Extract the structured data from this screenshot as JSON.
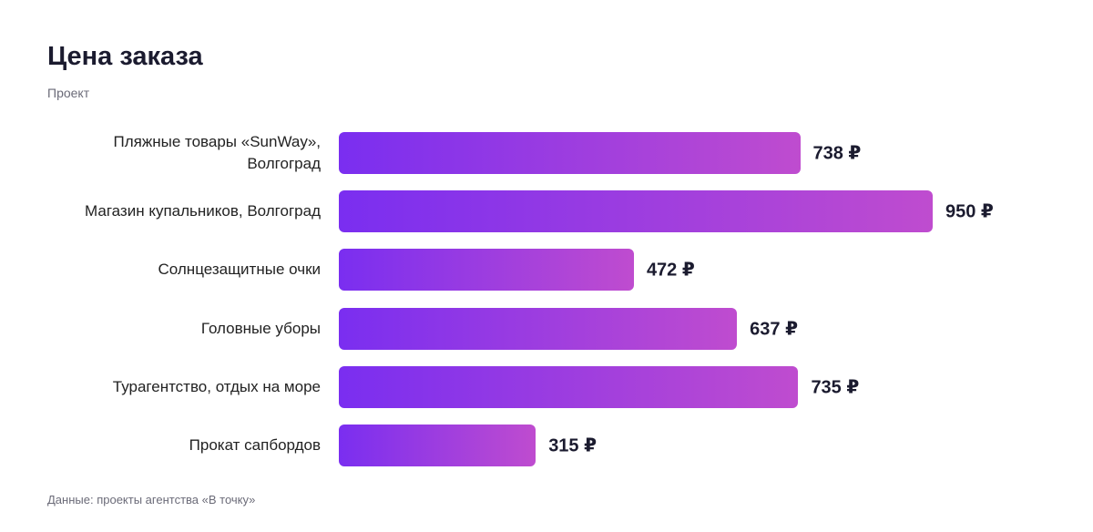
{
  "chart_data": {
    "type": "bar",
    "orientation": "horizontal",
    "title": "Цена заказа",
    "subtitle": "Проект",
    "categories": [
      "Пляжные товары «SunWay», Волгоград",
      "Магазин купальников, Волгоград",
      "Солнцезащитные очки",
      "Головные уборы",
      "Турагентство, отдых на море",
      "Прокат сапбордов"
    ],
    "values": [
      738,
      950,
      472,
      637,
      735,
      315
    ],
    "value_labels": [
      "738 ₽",
      "950 ₽",
      "472 ₽",
      "637 ₽",
      "735 ₽",
      "315 ₽"
    ],
    "gradient": [
      "#7a2ef0",
      "#bf4ccf"
    ],
    "source": "Данные: проекты агентства «В точку»"
  }
}
